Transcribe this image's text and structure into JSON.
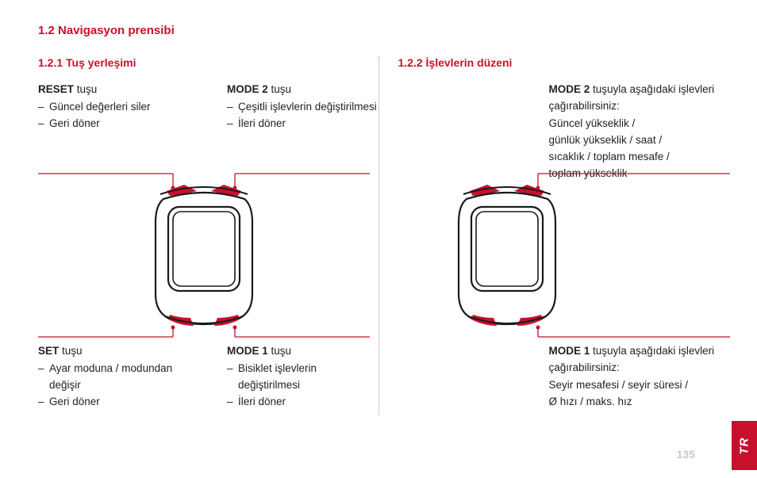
{
  "colors": {
    "accent": "#c8102e",
    "text": "#222222",
    "pagenum": "#c8c8c8",
    "device_outline": "#1a1a1a",
    "device_button": "#c8102e",
    "bg": "#ffffff"
  },
  "section_title": "1.2 Navigasyon prensibi",
  "page_number": "135",
  "tab_label": "TR",
  "left": {
    "title": "1.2.1 Tuş yerleşimi",
    "reset": {
      "label_bold": "RESET",
      "label_rest": " tuşu",
      "lines": [
        "Güncel değerleri siler",
        "Geri döner"
      ]
    },
    "mode2": {
      "label_bold": "MODE 2",
      "label_rest": " tuşu",
      "lines": [
        "Çeşitli işlevlerin değiştirilmesi",
        "İleri döner"
      ]
    },
    "set": {
      "label_bold": "SET",
      "label_rest": " tuşu",
      "lines": [
        "Ayar moduna /  modundan değişir",
        "Geri döner"
      ]
    },
    "mode1": {
      "label_bold": "MODE 1",
      "label_rest": " tuşu",
      "lines": [
        "Bisiklet işlevlerin değiştirilmesi",
        "İleri döner"
      ]
    }
  },
  "right": {
    "title": "1.2.2 İşlevlerin düzeni",
    "mode2": {
      "label_bold": "MODE 2",
      "label_rest": " tuşuyla aşağıdaki işlevleri çağırabilirsiniz:",
      "body": [
        "Güncel yükseklik /",
        "günlük yükseklik / saat /",
        "sıcaklık / toplam mesafe /",
        "toplam yükseklik"
      ]
    },
    "mode1": {
      "label_bold": "MODE 1",
      "label_rest": " tuşuyla aşağıdaki işlevleri çağırabilirsiniz:",
      "body": [
        "Seyir mesafesi / seyir süresi /",
        "Ø hızı / maks. hız"
      ]
    }
  },
  "device_svg": {
    "width": 150,
    "height": 190
  }
}
